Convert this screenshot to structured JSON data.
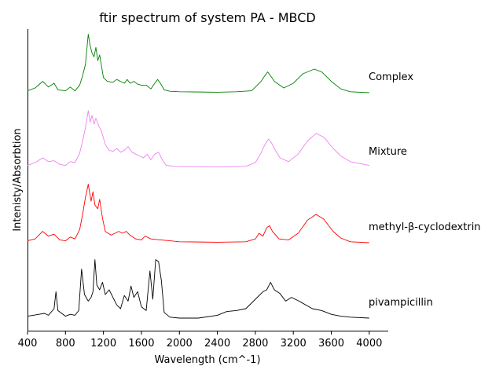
{
  "chart_data": {
    "type": "line",
    "title": "ftir spectrum of system PA - MBCD",
    "xlabel": "Wavelength (cm^-1)",
    "ylabel": "Intenisty/Absorbtion",
    "xlim": [
      400,
      4200
    ],
    "xticks": [
      400,
      800,
      1200,
      1600,
      2000,
      2400,
      2800,
      3200,
      3600,
      4000
    ],
    "grid": false,
    "legend": "text labels at right end of each trace",
    "series": [
      {
        "name": "Complex",
        "color": "#008000",
        "points": [
          [
            400,
            0.02
          ],
          [
            480,
            0.05
          ],
          [
            560,
            0.12
          ],
          [
            620,
            0.06
          ],
          [
            680,
            0.1
          ],
          [
            720,
            0.03
          ],
          [
            800,
            0.02
          ],
          [
            850,
            0.06
          ],
          [
            900,
            0.02
          ],
          [
            950,
            0.08
          ],
          [
            980,
            0.18
          ],
          [
            1010,
            0.3
          ],
          [
            1040,
            0.62
          ],
          [
            1060,
            0.5
          ],
          [
            1080,
            0.42
          ],
          [
            1100,
            0.38
          ],
          [
            1120,
            0.48
          ],
          [
            1140,
            0.34
          ],
          [
            1160,
            0.4
          ],
          [
            1180,
            0.28
          ],
          [
            1200,
            0.16
          ],
          [
            1240,
            0.12
          ],
          [
            1300,
            0.11
          ],
          [
            1340,
            0.14
          ],
          [
            1380,
            0.12
          ],
          [
            1420,
            0.1
          ],
          [
            1450,
            0.14
          ],
          [
            1480,
            0.1
          ],
          [
            1520,
            0.12
          ],
          [
            1560,
            0.09
          ],
          [
            1600,
            0.08
          ],
          [
            1650,
            0.08
          ],
          [
            1700,
            0.04
          ],
          [
            1740,
            0.1
          ],
          [
            1770,
            0.14
          ],
          [
            1800,
            0.1
          ],
          [
            1840,
            0.03
          ],
          [
            1900,
            0.015
          ],
          [
            2000,
            0.01
          ],
          [
            2400,
            0.005
          ],
          [
            2600,
            0.01
          ],
          [
            2760,
            0.02
          ],
          [
            2820,
            0.08
          ],
          [
            2860,
            0.12
          ],
          [
            2900,
            0.18
          ],
          [
            2930,
            0.22
          ],
          [
            2960,
            0.18
          ],
          [
            3000,
            0.12
          ],
          [
            3100,
            0.05
          ],
          [
            3200,
            0.1
          ],
          [
            3300,
            0.2
          ],
          [
            3420,
            0.25
          ],
          [
            3500,
            0.22
          ],
          [
            3600,
            0.12
          ],
          [
            3700,
            0.04
          ],
          [
            3800,
            0.01
          ],
          [
            4000,
            0.0
          ]
        ]
      },
      {
        "name": "Mixture",
        "color": "#ee82ee",
        "points": [
          [
            400,
            0.02
          ],
          [
            480,
            0.05
          ],
          [
            560,
            0.1
          ],
          [
            620,
            0.06
          ],
          [
            680,
            0.07
          ],
          [
            740,
            0.03
          ],
          [
            800,
            0.02
          ],
          [
            850,
            0.06
          ],
          [
            900,
            0.05
          ],
          [
            950,
            0.15
          ],
          [
            980,
            0.28
          ],
          [
            1010,
            0.42
          ],
          [
            1040,
            0.6
          ],
          [
            1060,
            0.48
          ],
          [
            1080,
            0.55
          ],
          [
            1100,
            0.46
          ],
          [
            1120,
            0.52
          ],
          [
            1150,
            0.44
          ],
          [
            1180,
            0.38
          ],
          [
            1220,
            0.24
          ],
          [
            1260,
            0.18
          ],
          [
            1300,
            0.17
          ],
          [
            1340,
            0.2
          ],
          [
            1380,
            0.16
          ],
          [
            1420,
            0.18
          ],
          [
            1460,
            0.22
          ],
          [
            1500,
            0.16
          ],
          [
            1540,
            0.14
          ],
          [
            1580,
            0.12
          ],
          [
            1620,
            0.1
          ],
          [
            1660,
            0.14
          ],
          [
            1700,
            0.08
          ],
          [
            1740,
            0.14
          ],
          [
            1780,
            0.16
          ],
          [
            1820,
            0.08
          ],
          [
            1860,
            0.02
          ],
          [
            1950,
            0.01
          ],
          [
            2400,
            0.005
          ],
          [
            2700,
            0.01
          ],
          [
            2800,
            0.05
          ],
          [
            2860,
            0.15
          ],
          [
            2900,
            0.24
          ],
          [
            2940,
            0.3
          ],
          [
            2970,
            0.26
          ],
          [
            3010,
            0.18
          ],
          [
            3060,
            0.1
          ],
          [
            3150,
            0.06
          ],
          [
            3250,
            0.14
          ],
          [
            3350,
            0.28
          ],
          [
            3440,
            0.36
          ],
          [
            3520,
            0.32
          ],
          [
            3620,
            0.2
          ],
          [
            3700,
            0.12
          ],
          [
            3800,
            0.06
          ],
          [
            3900,
            0.04
          ],
          [
            4000,
            0.02
          ]
        ]
      },
      {
        "name": "methyl-β-cyclodextrin",
        "color": "#ff0000",
        "points": [
          [
            400,
            0.02
          ],
          [
            480,
            0.04
          ],
          [
            560,
            0.12
          ],
          [
            620,
            0.07
          ],
          [
            680,
            0.09
          ],
          [
            740,
            0.03
          ],
          [
            800,
            0.02
          ],
          [
            850,
            0.06
          ],
          [
            900,
            0.04
          ],
          [
            950,
            0.14
          ],
          [
            980,
            0.3
          ],
          [
            1010,
            0.48
          ],
          [
            1040,
            0.62
          ],
          [
            1070,
            0.44
          ],
          [
            1090,
            0.54
          ],
          [
            1110,
            0.4
          ],
          [
            1140,
            0.36
          ],
          [
            1160,
            0.46
          ],
          [
            1190,
            0.26
          ],
          [
            1220,
            0.12
          ],
          [
            1280,
            0.08
          ],
          [
            1320,
            0.1
          ],
          [
            1360,
            0.12
          ],
          [
            1400,
            0.1
          ],
          [
            1440,
            0.12
          ],
          [
            1480,
            0.08
          ],
          [
            1540,
            0.04
          ],
          [
            1600,
            0.03
          ],
          [
            1640,
            0.07
          ],
          [
            1700,
            0.04
          ],
          [
            1800,
            0.03
          ],
          [
            1900,
            0.02
          ],
          [
            2000,
            0.01
          ],
          [
            2400,
            0.005
          ],
          [
            2700,
            0.01
          ],
          [
            2800,
            0.04
          ],
          [
            2840,
            0.1
          ],
          [
            2880,
            0.07
          ],
          [
            2920,
            0.16
          ],
          [
            2950,
            0.18
          ],
          [
            2980,
            0.12
          ],
          [
            3050,
            0.04
          ],
          [
            3150,
            0.03
          ],
          [
            3250,
            0.1
          ],
          [
            3350,
            0.24
          ],
          [
            3440,
            0.3
          ],
          [
            3520,
            0.25
          ],
          [
            3620,
            0.12
          ],
          [
            3700,
            0.05
          ],
          [
            3800,
            0.01
          ],
          [
            4000,
            0.0
          ]
        ]
      },
      {
        "name": "pivampicillin",
        "color": "#000000",
        "points": [
          [
            400,
            0.02
          ],
          [
            460,
            0.03
          ],
          [
            520,
            0.04
          ],
          [
            580,
            0.05
          ],
          [
            620,
            0.03
          ],
          [
            680,
            0.1
          ],
          [
            700,
            0.28
          ],
          [
            720,
            0.08
          ],
          [
            760,
            0.05
          ],
          [
            800,
            0.02
          ],
          [
            850,
            0.04
          ],
          [
            900,
            0.03
          ],
          [
            940,
            0.08
          ],
          [
            970,
            0.52
          ],
          [
            1000,
            0.25
          ],
          [
            1040,
            0.18
          ],
          [
            1070,
            0.22
          ],
          [
            1090,
            0.28
          ],
          [
            1110,
            0.62
          ],
          [
            1130,
            0.35
          ],
          [
            1160,
            0.3
          ],
          [
            1190,
            0.38
          ],
          [
            1220,
            0.25
          ],
          [
            1260,
            0.3
          ],
          [
            1300,
            0.22
          ],
          [
            1340,
            0.14
          ],
          [
            1380,
            0.1
          ],
          [
            1420,
            0.24
          ],
          [
            1460,
            0.18
          ],
          [
            1490,
            0.34
          ],
          [
            1520,
            0.22
          ],
          [
            1560,
            0.28
          ],
          [
            1600,
            0.12
          ],
          [
            1650,
            0.08
          ],
          [
            1690,
            0.5
          ],
          [
            1720,
            0.2
          ],
          [
            1750,
            0.62
          ],
          [
            1780,
            0.6
          ],
          [
            1810,
            0.4
          ],
          [
            1840,
            0.06
          ],
          [
            1900,
            0.01
          ],
          [
            2000,
            0.0
          ],
          [
            2200,
            0.0
          ],
          [
            2400,
            0.03
          ],
          [
            2500,
            0.07
          ],
          [
            2600,
            0.08
          ],
          [
            2700,
            0.1
          ],
          [
            2800,
            0.2
          ],
          [
            2880,
            0.28
          ],
          [
            2920,
            0.3
          ],
          [
            2960,
            0.38
          ],
          [
            3000,
            0.3
          ],
          [
            3060,
            0.26
          ],
          [
            3120,
            0.18
          ],
          [
            3180,
            0.22
          ],
          [
            3260,
            0.18
          ],
          [
            3400,
            0.1
          ],
          [
            3500,
            0.08
          ],
          [
            3600,
            0.04
          ],
          [
            3700,
            0.02
          ],
          [
            3800,
            0.01
          ],
          [
            4000,
            0.0
          ]
        ]
      }
    ]
  }
}
